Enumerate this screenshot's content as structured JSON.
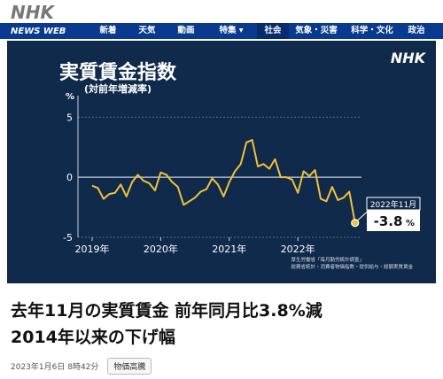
{
  "site": {
    "logo": "NHK",
    "brand": "NEWS WEB"
  },
  "nav": {
    "items": [
      {
        "label": "新着",
        "active": false
      },
      {
        "label": "天気",
        "active": false
      },
      {
        "label": "動画",
        "active": false
      },
      {
        "label": "特集 ▾",
        "active": false
      },
      {
        "label": "社会",
        "active": true
      },
      {
        "label": "気象・災害",
        "active": false
      },
      {
        "label": "科学・文化",
        "active": false
      },
      {
        "label": "政治",
        "active": false
      }
    ]
  },
  "figure": {
    "watermark": "NHK",
    "source_line1": "厚生労働省「毎月勤労統計調査」",
    "source_line2": "総務省統計・消費者物価指数・提供給与・総額実質賃金"
  },
  "chart_data": {
    "type": "line",
    "title": "実質賃金指数",
    "subtitle": "(対前年増減率)",
    "ylabel": "%",
    "ylim": [
      -5,
      6.2
    ],
    "yticks": [
      5,
      0,
      -5
    ],
    "xticks": [
      "2019年",
      "2020年",
      "2021年",
      "2022年"
    ],
    "x_start": "2019-01",
    "series": [
      {
        "values": [
          -0.7,
          -0.9,
          -1.8,
          -1.4,
          -1.3,
          -0.6,
          -1.6,
          -0.4,
          0.2,
          -0.3,
          -0.5,
          -1.1,
          0.4,
          0.2,
          -0.4,
          -0.8,
          -2.3,
          -2.0,
          -1.7,
          -1.2,
          -1.0,
          -0.1,
          -0.6,
          -1.6,
          -0.4,
          0.5,
          1.1,
          2.9,
          3.1,
          0.9,
          1.1,
          0.7,
          1.5,
          0.0,
          0.0,
          -0.2,
          -1.3,
          0.5,
          0.1,
          0.6,
          -1.8,
          -2.0,
          -0.8,
          -1.9,
          -1.7,
          -1.2,
          -3.8
        ],
        "color": "#f2c037"
      }
    ],
    "annotation": {
      "label": "2022年11月",
      "value_text": "-3.8",
      "unit": "%"
    }
  },
  "article": {
    "headline_line1": "去年11月の実質賃金 前年同月比3.8%減",
    "headline_line2": "2014年以来の下げ幅",
    "date": "2023年1月6日 8時42分",
    "tag": "物価高騰"
  }
}
